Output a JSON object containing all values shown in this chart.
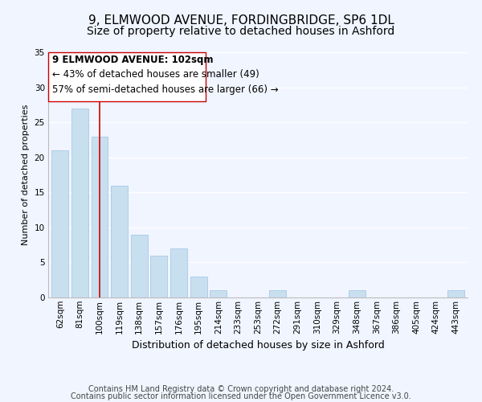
{
  "title": "9, ELMWOOD AVENUE, FORDINGBRIDGE, SP6 1DL",
  "subtitle": "Size of property relative to detached houses in Ashford",
  "xlabel": "Distribution of detached houses by size in Ashford",
  "ylabel": "Number of detached properties",
  "categories": [
    "62sqm",
    "81sqm",
    "100sqm",
    "119sqm",
    "138sqm",
    "157sqm",
    "176sqm",
    "195sqm",
    "214sqm",
    "233sqm",
    "253sqm",
    "272sqm",
    "291sqm",
    "310sqm",
    "329sqm",
    "348sqm",
    "367sqm",
    "386sqm",
    "405sqm",
    "424sqm",
    "443sqm"
  ],
  "values": [
    21,
    27,
    23,
    16,
    9,
    6,
    7,
    3,
    1,
    0,
    0,
    1,
    0,
    0,
    0,
    1,
    0,
    0,
    0,
    0,
    1
  ],
  "bar_color": "#c8dff0",
  "bar_edge_color": "#a8c8e8",
  "highlight_index": 2,
  "highlight_line_color": "#cc0000",
  "annotation_box_color": "#ffffff",
  "annotation_box_edge_color": "#cc0000",
  "annotation_text_line1": "9 ELMWOOD AVENUE: 102sqm",
  "annotation_text_line2": "← 43% of detached houses are smaller (49)",
  "annotation_text_line3": "57% of semi-detached houses are larger (66) →",
  "ylim": [
    0,
    35
  ],
  "yticks": [
    0,
    5,
    10,
    15,
    20,
    25,
    30,
    35
  ],
  "footer1": "Contains HM Land Registry data © Crown copyright and database right 2024.",
  "footer2": "Contains public sector information licensed under the Open Government Licence v3.0.",
  "background_color": "#f0f5ff",
  "grid_color": "#ffffff",
  "title_fontsize": 11,
  "subtitle_fontsize": 10,
  "tick_fontsize": 7.5,
  "annotation_fontsize": 8.5,
  "ylabel_fontsize": 8,
  "xlabel_fontsize": 9,
  "footer_fontsize": 7
}
